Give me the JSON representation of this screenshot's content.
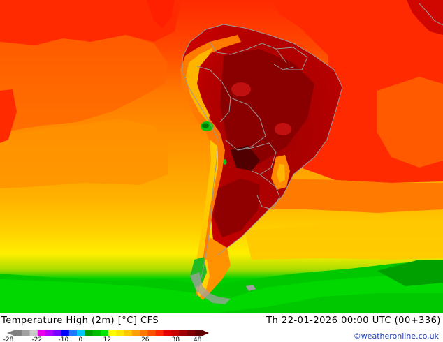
{
  "map": {
    "title": "Temperature High (2m) [°C] CFS",
    "datetime": "Th 22-01-2026 00:00 UTC (00+336)",
    "credit": "©weatheronline.co.uk",
    "region": "South America",
    "legend": {
      "tick_labels": [
        "-28",
        "-22",
        "-10",
        "0",
        "12",
        "26",
        "38",
        "48"
      ],
      "colors": [
        "#808080",
        "#a0a0a0",
        "#c8c8c8",
        "#e600e6",
        "#b400ff",
        "#7800ff",
        "#0000ff",
        "#1e78ff",
        "#00c8ff",
        "#00a000",
        "#00be00",
        "#00e600",
        "#ffff00",
        "#ffe600",
        "#ffc800",
        "#ffa000",
        "#ff7800",
        "#ff5000",
        "#ff2800",
        "#e60000",
        "#c80000",
        "#a00000",
        "#800000",
        "#600000"
      ]
    },
    "palette": {
      "ocean_far": "#ff2a00",
      "ocean_mid": "#ff6400",
      "ocean_warm": "#ff9900",
      "ocean_cool": "#ffc800",
      "ocean_cold": "#ffee00",
      "south_green": "#00c800",
      "land_hot": "#a00000",
      "land_hottest": "#7a0000",
      "andes_hot": "#dc0000",
      "andes_cool": "#ffaa00",
      "peak_green": "#10c010",
      "border": "#999999"
    }
  }
}
